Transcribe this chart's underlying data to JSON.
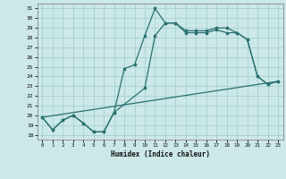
{
  "xlabel": "Humidex (Indice chaleur)",
  "xlim": [
    -0.5,
    23.5
  ],
  "ylim": [
    17.5,
    31.5
  ],
  "xticks": [
    0,
    1,
    2,
    3,
    4,
    5,
    6,
    7,
    8,
    9,
    10,
    11,
    12,
    13,
    14,
    15,
    16,
    17,
    18,
    19,
    20,
    21,
    22,
    23
  ],
  "yticks": [
    18,
    19,
    20,
    21,
    22,
    23,
    24,
    25,
    26,
    27,
    28,
    29,
    30,
    31
  ],
  "bg_color": "#cce8e8",
  "grid_color": "#aad4d4",
  "line_color": "#2a7070",
  "line1_x": [
    0,
    1,
    2,
    3,
    4,
    5,
    6,
    7,
    8,
    9,
    10,
    11,
    12,
    13,
    14,
    15,
    16,
    17,
    18,
    19,
    20,
    21,
    22,
    23
  ],
  "line1_y": [
    19.8,
    18.5,
    19.5,
    20.0,
    19.2,
    18.3,
    18.3,
    20.3,
    24.8,
    25.2,
    28.2,
    31.0,
    29.5,
    29.5,
    28.5,
    28.5,
    28.5,
    28.8,
    28.5,
    28.5,
    27.8,
    24.0,
    23.2,
    23.5
  ],
  "line2_x": [
    0,
    1,
    2,
    3,
    4,
    5,
    6,
    7,
    10,
    11,
    12,
    13,
    14,
    15,
    16,
    17,
    18,
    19,
    20,
    21,
    22,
    23
  ],
  "line2_y": [
    19.8,
    18.5,
    19.5,
    20.0,
    19.2,
    18.3,
    18.3,
    20.3,
    22.8,
    28.2,
    29.5,
    29.5,
    28.7,
    28.7,
    28.7,
    29.0,
    29.0,
    28.5,
    27.8,
    24.0,
    23.2,
    23.5
  ],
  "line3_x": [
    0,
    23
  ],
  "line3_y": [
    19.8,
    23.5
  ]
}
